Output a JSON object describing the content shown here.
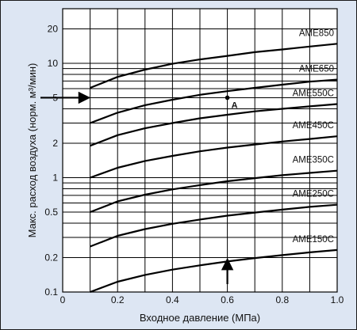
{
  "chart_data": {
    "type": "line",
    "title": "",
    "xlabel": "Входное давление (МПа)",
    "ylabel": "Макс. расход воздуха (норм. м³/мин)",
    "xscale": "linear",
    "yscale": "log",
    "xlim": [
      0,
      1.0
    ],
    "ylim": [
      0.1,
      30
    ],
    "xticks": [
      0,
      0.2,
      0.4,
      0.6,
      0.8,
      1.0
    ],
    "xtick_labels": [
      "0",
      "0.2",
      "0.4",
      "0.6",
      "0.8",
      "1.0"
    ],
    "yticks": [
      0.1,
      0.2,
      0.5,
      1,
      2,
      5,
      10,
      20
    ],
    "ytick_labels": [
      "0.1",
      "0.2",
      "0.5",
      "1",
      "2",
      "5",
      "10",
      "20"
    ],
    "grid": true,
    "background_color": "#dde6f3",
    "plot_color": "#ffffff",
    "series": [
      {
        "name": "AME850",
        "x": [
          0.1,
          0.2,
          0.3,
          0.4,
          0.5,
          0.6,
          0.7,
          0.8,
          0.9,
          1.0
        ],
        "y": [
          6.1,
          7.6,
          8.8,
          9.9,
          10.8,
          11.6,
          12.5,
          13.2,
          14.0,
          14.8
        ]
      },
      {
        "name": "AME650",
        "x": [
          0.1,
          0.2,
          0.3,
          0.4,
          0.5,
          0.6,
          0.7,
          0.8,
          0.9,
          1.0
        ],
        "y": [
          3.0,
          3.7,
          4.3,
          4.8,
          5.3,
          5.7,
          6.1,
          6.5,
          6.9,
          7.2
        ]
      },
      {
        "name": "AME550C",
        "x": [
          0.1,
          0.2,
          0.3,
          0.4,
          0.5,
          0.6,
          0.7,
          0.8,
          0.9,
          1.0
        ],
        "y": [
          1.9,
          2.35,
          2.7,
          3.0,
          3.3,
          3.55,
          3.8,
          4.0,
          4.2,
          4.4
        ]
      },
      {
        "name": "AME450C",
        "x": [
          0.1,
          0.2,
          0.3,
          0.4,
          0.5,
          0.6,
          0.7,
          0.8,
          0.9,
          1.0
        ],
        "y": [
          1.0,
          1.22,
          1.4,
          1.55,
          1.7,
          1.83,
          1.95,
          2.07,
          2.18,
          2.3
        ]
      },
      {
        "name": "AME350C",
        "x": [
          0.1,
          0.2,
          0.3,
          0.4,
          0.5,
          0.6,
          0.7,
          0.8,
          0.9,
          1.0
        ],
        "y": [
          0.5,
          0.62,
          0.71,
          0.79,
          0.86,
          0.93,
          0.99,
          1.05,
          1.1,
          1.15
        ]
      },
      {
        "name": "AME250C",
        "x": [
          0.1,
          0.2,
          0.3,
          0.4,
          0.5,
          0.6,
          0.7,
          0.8,
          0.9,
          1.0
        ],
        "y": [
          0.25,
          0.31,
          0.355,
          0.395,
          0.43,
          0.465,
          0.495,
          0.525,
          0.555,
          0.58
        ]
      },
      {
        "name": "AME150C",
        "x": [
          0.1,
          0.2,
          0.3,
          0.4,
          0.5,
          0.6,
          0.7,
          0.8,
          0.9,
          1.0
        ],
        "y": [
          0.1,
          0.123,
          0.141,
          0.157,
          0.171,
          0.185,
          0.198,
          0.21,
          0.222,
          0.233
        ]
      }
    ],
    "annotations": [
      {
        "label": "A",
        "x": 0.6,
        "y": 5.0
      }
    ],
    "arrows": [
      {
        "description": "horizontal arrow into y axis",
        "from": [
          0,
          5.0
        ],
        "to": [
          0.1,
          5.0
        ]
      },
      {
        "description": "vertical arrow up from x axis",
        "from": [
          0.6,
          0.1
        ],
        "to": [
          0.6,
          0.2
        ]
      }
    ]
  }
}
